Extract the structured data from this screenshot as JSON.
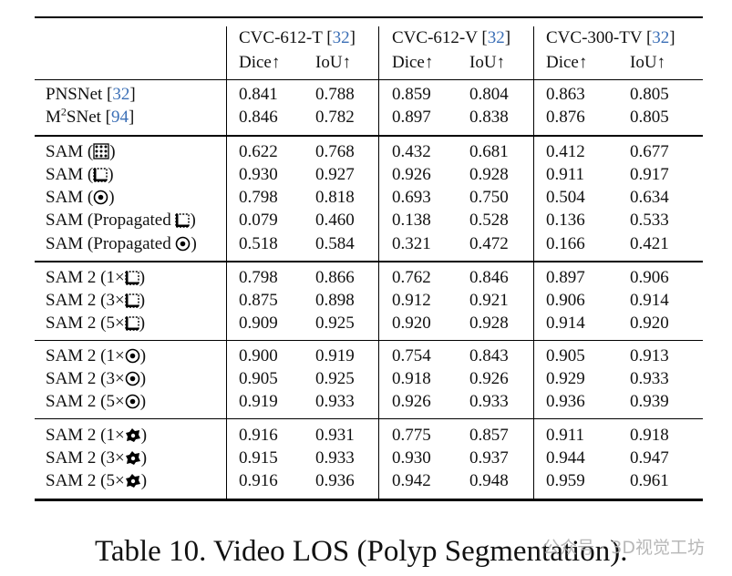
{
  "header": {
    "groups": [
      {
        "name": "CVC-612-T",
        "ref": "32"
      },
      {
        "name": "CVC-612-V",
        "ref": "32"
      },
      {
        "name": "CVC-300-TV",
        "ref": "32"
      }
    ],
    "dice_label": "Dice↑",
    "iou_label": "IoU↑"
  },
  "sections": [
    {
      "rows": [
        {
          "name": "PNSNet",
          "ref": "32",
          "icon": "",
          "vals": [
            "0.841",
            "0.788",
            "0.859",
            "0.804",
            "0.863",
            "0.805"
          ]
        },
        {
          "name": "M2SNet",
          "ref": "94",
          "icon": "",
          "vals": [
            "0.846",
            "0.782",
            "0.897",
            "0.838",
            "0.876",
            "0.805"
          ]
        }
      ]
    },
    {
      "rows": [
        {
          "name": "SAM (",
          "suffix": ")",
          "icon": "grid-icon",
          "vals": [
            "0.622",
            "0.768",
            "0.432",
            "0.681",
            "0.412",
            "0.677"
          ]
        },
        {
          "name": "SAM (",
          "suffix": ")",
          "icon": "box-icon",
          "vals": [
            "0.930",
            "0.927",
            "0.926",
            "0.928",
            "0.911",
            "0.917"
          ]
        },
        {
          "name": "SAM (",
          "suffix": ")",
          "icon": "point-icon",
          "vals": [
            "0.798",
            "0.818",
            "0.693",
            "0.750",
            "0.504",
            "0.634"
          ]
        },
        {
          "name": "SAM (Propagated ",
          "suffix": ")",
          "icon": "box-icon",
          "vals": [
            "0.079",
            "0.460",
            "0.138",
            "0.528",
            "0.136",
            "0.533"
          ]
        },
        {
          "name": "SAM (Propagated ",
          "suffix": ")",
          "icon": "point-icon",
          "vals": [
            "0.518",
            "0.584",
            "0.321",
            "0.472",
            "0.166",
            "0.421"
          ]
        }
      ]
    },
    {
      "rows": [
        {
          "name": "SAM 2 (1×",
          "suffix": ")",
          "icon": "box-icon",
          "vals": [
            "0.798",
            "0.866",
            "0.762",
            "0.846",
            "0.897",
            "0.906"
          ]
        },
        {
          "name": "SAM 2 (3×",
          "suffix": ")",
          "icon": "box-icon",
          "vals": [
            "0.875",
            "0.898",
            "0.912",
            "0.921",
            "0.906",
            "0.914"
          ]
        },
        {
          "name": "SAM 2 (5×",
          "suffix": ")",
          "icon": "box-icon",
          "vals": [
            "0.909",
            "0.925",
            "0.920",
            "0.928",
            "0.914",
            "0.920"
          ]
        }
      ]
    },
    {
      "rows": [
        {
          "name": "SAM 2 (1×",
          "suffix": ")",
          "icon": "point-icon",
          "vals": [
            "0.900",
            "0.919",
            "0.754",
            "0.843",
            "0.905",
            "0.913"
          ]
        },
        {
          "name": "SAM 2 (3×",
          "suffix": ")",
          "icon": "point-icon",
          "vals": [
            "0.905",
            "0.925",
            "0.918",
            "0.926",
            "0.929",
            "0.933"
          ]
        },
        {
          "name": "SAM 2 (5×",
          "suffix": ")",
          "icon": "point-icon",
          "vals": [
            "0.919",
            "0.933",
            "0.926",
            "0.933",
            "0.936",
            "0.939"
          ]
        }
      ]
    },
    {
      "rows": [
        {
          "name": "SAM 2 (1×",
          "suffix": ")",
          "icon": "mask-icon",
          "vals": [
            "0.916",
            "0.931",
            "0.775",
            "0.857",
            "0.911",
            "0.918"
          ]
        },
        {
          "name": "SAM 2 (3×",
          "suffix": ")",
          "icon": "mask-icon",
          "vals": [
            "0.915",
            "0.933",
            "0.930",
            "0.937",
            "0.944",
            "0.947"
          ]
        },
        {
          "name": "SAM 2 (5×",
          "suffix": ")",
          "icon": "mask-icon",
          "vals": [
            "0.916",
            "0.936",
            "0.942",
            "0.948",
            "0.959",
            "0.961"
          ]
        }
      ]
    }
  ],
  "caption": "Table 10. Video LOS (Polyp Segmentation).",
  "watermark": "公众号 · 3D视觉工坊"
}
